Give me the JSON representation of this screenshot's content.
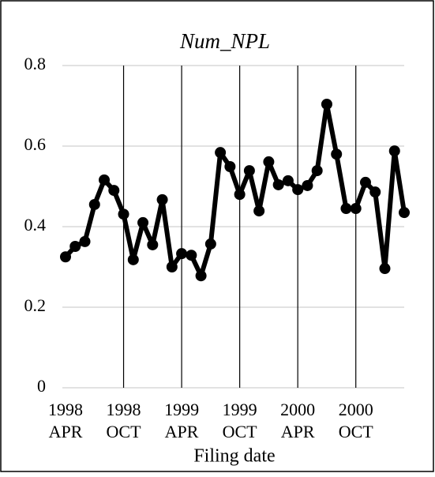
{
  "chart_data": {
    "type": "line",
    "title": "Num_NPL",
    "x_label": "Filing date",
    "categories": [
      "1998 APR",
      null,
      null,
      null,
      null,
      null,
      "1998 OCT",
      null,
      null,
      null,
      null,
      null,
      "1999 APR",
      null,
      null,
      null,
      null,
      null,
      "1999 OCT",
      null,
      null,
      null,
      null,
      null,
      "2000 APR",
      null,
      null,
      null,
      null,
      null,
      "2000 OCT",
      null,
      null,
      null,
      null,
      null
    ],
    "values": [
      0.325,
      0.351,
      0.363,
      0.455,
      0.516,
      0.49,
      0.431,
      0.318,
      0.41,
      0.355,
      0.467,
      0.3,
      0.333,
      0.329,
      0.278,
      0.357,
      0.584,
      0.549,
      0.48,
      0.539,
      0.439,
      0.561,
      0.504,
      0.514,
      0.492,
      0.502,
      0.539,
      0.704,
      0.58,
      0.445,
      0.445,
      0.51,
      0.486,
      0.296,
      0.588,
      0.435
    ],
    "color": "#000000",
    "ylim": [
      0,
      0.8
    ],
    "yticks": [
      0,
      0.2,
      0.4,
      0.6,
      0.8
    ],
    "grid": true
  }
}
